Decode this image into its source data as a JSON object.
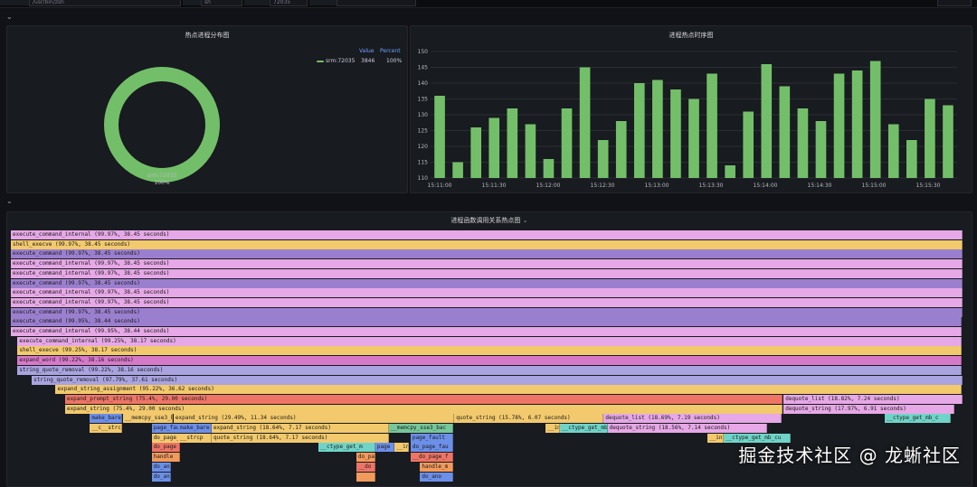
{
  "topbar": {
    "fields": [
      {
        "label": "",
        "value": "/usr/bin/zsh"
      },
      {
        "label": "",
        "value": "sh"
      },
      {
        "label": "",
        "value": "72035"
      },
      {
        "label": "",
        "value": ""
      }
    ]
  },
  "pie_panel": {
    "title": "热点进程分布图",
    "legend_headers": {
      "value": "Value",
      "percent": "Percent"
    },
    "legend_rows": [
      {
        "name": "srm:72035",
        "value": "3846",
        "percent": "100%"
      }
    ],
    "slice_label": "srm:72035",
    "slice_percent": "100%",
    "color": "#73bf69"
  },
  "bar_panel": {
    "title": "进程热点时序图",
    "color": "#73bf69"
  },
  "flame_panel": {
    "title": "进程函数调用关系热点图",
    "chevron": "⌄"
  },
  "chart_data": [
    {
      "type": "pie",
      "labels": [
        "srm:72035"
      ],
      "values": [
        3846
      ],
      "percents": [
        100
      ]
    },
    {
      "type": "bar",
      "x_ticks": [
        "15:11:00",
        "15:11:30",
        "15:12:00",
        "15:12:30",
        "15:13:00",
        "15:13:30",
        "15:14:00",
        "15:14:30",
        "15:15:00",
        "15:15:30"
      ],
      "values": [
        136,
        115,
        126,
        129,
        132,
        127,
        116,
        132,
        145,
        122,
        128,
        140,
        141,
        138,
        135,
        143,
        114,
        131,
        146,
        139,
        132,
        128,
        143,
        144,
        147,
        127,
        122,
        135,
        133
      ],
      "ylim": [
        110,
        150
      ],
      "y_ticks": [
        110,
        115,
        120,
        125,
        130,
        135,
        140,
        145,
        150
      ],
      "grid": true
    }
  ],
  "flame": {
    "rows": [
      [
        {
          "t": "execute_command_internal (99.97%, 38.45 seconds)",
          "s": 0.0,
          "w": 1.0,
          "c": "#e6a8e6"
        }
      ],
      [
        {
          "t": "shell_execve (99.97%, 38.45 seconds)",
          "s": 0.0,
          "w": 1.0,
          "c": "#f2c96d"
        }
      ],
      [
        {
          "t": "execute_command (99.97%, 38.45 seconds)",
          "s": 0.0,
          "w": 1.0,
          "c": "#9b7fcf"
        }
      ],
      [
        {
          "t": "execute_command_internal (99.97%, 38.45 seconds)",
          "s": 0.0,
          "w": 1.0,
          "c": "#e6a8e6"
        }
      ],
      [
        {
          "t": "execute_command_internal (99.97%, 38.45 seconds)",
          "s": 0.0,
          "w": 1.0,
          "c": "#e6a8e6"
        }
      ],
      [
        {
          "t": "execute_command (99.97%, 38.45 seconds)",
          "s": 0.0,
          "w": 1.0,
          "c": "#9b7fcf"
        }
      ],
      [
        {
          "t": "execute_command_internal (99.97%, 38.45 seconds)",
          "s": 0.0,
          "w": 1.0,
          "c": "#e6a8e6"
        }
      ],
      [
        {
          "t": "execute_command_internal (99.97%, 38.45 seconds)",
          "s": 0.0,
          "w": 1.0,
          "c": "#e6a8e6"
        }
      ],
      [
        {
          "t": "execute_command (99.97%, 38.45 seconds)",
          "s": 0.0,
          "w": 1.0,
          "c": "#9b7fcf"
        }
      ],
      [
        {
          "t": "execute_command (99.95%, 38.44 seconds)",
          "s": 0.0,
          "w": 0.9995,
          "c": "#9b7fcf"
        }
      ],
      [
        {
          "t": "execute_command_internal (99.95%, 38.44 seconds)",
          "s": 0.0,
          "w": 0.9995,
          "c": "#e6a8e6"
        }
      ],
      [
        {
          "t": "execute_command_internal (99.25%, 38.17 seconds)",
          "s": 0.007,
          "w": 0.9925,
          "c": "#e6a8e6"
        }
      ],
      [
        {
          "t": "shell_execve (99.25%, 38.17 seconds)",
          "s": 0.007,
          "w": 0.9925,
          "c": "#f2c96d"
        }
      ],
      [
        {
          "t": "expand_word (99.22%, 38.16 seconds)",
          "s": 0.007,
          "w": 0.9922,
          "c": "#d679c9"
        }
      ],
      [
        {
          "t": "string_quote_removal (99.22%, 38.16 seconds)",
          "s": 0.007,
          "w": 0.9922,
          "c": "#a9a3e0"
        }
      ],
      [
        {
          "t": "string_quote_removal (97.79%, 37.61 seconds)",
          "s": 0.022,
          "w": 0.9779,
          "c": "#a9a3e0"
        }
      ],
      [
        {
          "t": "expand_string_assignment (95.22%, 36.62 seconds)",
          "s": 0.047,
          "w": 0.9522,
          "c": "#f2c96d"
        }
      ],
      [
        {
          "t": "expand_prompt_string (75.4%, 29.00 seconds)",
          "s": 0.057,
          "w": 0.754,
          "c": "#ee7566"
        },
        {
          "t": "dequote_list (18.82%, 7.24 seconds)",
          "s": 0.812,
          "w": 0.1882,
          "c": "#e6a8e6"
        }
      ],
      [
        {
          "t": "expand_string (75.4%, 29.00 seconds)",
          "s": 0.057,
          "w": 0.754,
          "c": "#f2c96d"
        },
        {
          "t": "dequote_string (17.97%, 6.91 seconds)",
          "s": 0.812,
          "w": 0.1797,
          "c": "#e6a8e6"
        }
      ],
      [
        {
          "t": "make_bare_",
          "s": 0.083,
          "w": 0.034,
          "c": "#6c8fe8"
        },
        {
          "t": "__memcpy_sse3_b",
          "s": 0.118,
          "w": 0.052,
          "c": "#f2c96d"
        },
        {
          "t": "expand_string (29.49%, 11.34 seconds)",
          "s": 0.171,
          "w": 0.295,
          "c": "#f2c96d"
        },
        {
          "t": "quote_string (15.78%, 6.07 seconds)",
          "s": 0.466,
          "w": 0.157,
          "c": "#f2c96d"
        },
        {
          "t": "dequote_list (18.69%, 7.19 seconds)",
          "s": 0.623,
          "w": 0.187,
          "c": "#e6a8e6"
        },
        {
          "t": "__ctype_get_mb_c",
          "s": 0.918,
          "w": 0.07,
          "c": "#6fd4c7"
        }
      ],
      [
        {
          "t": "__c__strc",
          "s": 0.083,
          "w": 0.034,
          "c": "#f2c96d"
        },
        {
          "t": "page_fau",
          "s": 0.148,
          "w": 0.03,
          "c": "#6c8fe8"
        },
        {
          "t": "make_bare",
          "s": 0.176,
          "w": 0.035,
          "c": "#6c8fe8"
        },
        {
          "t": "expand_string (18.64%, 7.17 seconds)",
          "s": 0.211,
          "w": 0.186,
          "c": "#f2c96d"
        },
        {
          "t": "__memcpy_sse3_bac",
          "s": 0.397,
          "w": 0.068,
          "c": "#77c79b"
        },
        {
          "t": "__in",
          "s": 0.562,
          "w": 0.015,
          "c": "#f2c96d"
        },
        {
          "t": "__ctype_get_mb",
          "s": 0.577,
          "w": 0.05,
          "c": "#6fd4c7"
        },
        {
          "t": "dequote_string (18.56%, 7.14 seconds)",
          "s": 0.627,
          "w": 0.168,
          "c": "#e6a8e6"
        }
      ],
      [
        {
          "t": "do_page_",
          "s": 0.148,
          "w": 0.03,
          "c": "#f2c96d"
        },
        {
          "t": "__strcp",
          "s": 0.176,
          "w": 0.035,
          "c": "#f2c96d"
        },
        {
          "t": "quote_string (18.64%, 7.17 seconds)",
          "s": 0.211,
          "w": 0.186,
          "c": "#f2c96d"
        },
        {
          "t": "page_fault",
          "s": 0.42,
          "w": 0.045,
          "c": "#6c8fe8"
        },
        {
          "t": "__in",
          "s": 0.732,
          "w": 0.017,
          "c": "#f2c96d"
        },
        {
          "t": "__ctype_get_mb_cu",
          "s": 0.749,
          "w": 0.07,
          "c": "#6fd4c7"
        }
      ],
      [
        {
          "t": "do_page",
          "s": 0.148,
          "w": 0.03,
          "c": "#ee7566"
        },
        {
          "t": "__ctype_get_m",
          "s": 0.323,
          "w": 0.06,
          "c": "#6fd4c7"
        },
        {
          "t": "page",
          "s": 0.383,
          "w": 0.02,
          "c": "#6c8fe8"
        },
        {
          "t": "__in",
          "s": 0.403,
          "w": 0.015,
          "c": "#f2c96d"
        },
        {
          "t": "do_page_fau",
          "s": 0.42,
          "w": 0.045,
          "c": "#6c8fe8"
        }
      ],
      [
        {
          "t": "handle",
          "s": 0.148,
          "w": 0.03,
          "c": "#f29a5c"
        },
        {
          "t": "do_pa",
          "s": 0.363,
          "w": 0.02,
          "c": "#f29a5c"
        },
        {
          "t": "__do_page_f",
          "s": 0.42,
          "w": 0.045,
          "c": "#ee7566"
        }
      ],
      [
        {
          "t": "do_an",
          "s": 0.148,
          "w": 0.02,
          "c": "#6c8fe8"
        },
        {
          "t": "__do",
          "s": 0.363,
          "w": 0.02,
          "c": "#ee7566"
        },
        {
          "t": "handle_m",
          "s": 0.43,
          "w": 0.035,
          "c": "#f29a5c"
        }
      ],
      [
        {
          "t": "do_an",
          "s": 0.148,
          "w": 0.02,
          "c": "#6c8fe8"
        },
        {
          "t": "",
          "s": 0.363,
          "w": 0.02,
          "c": "#f29a5c"
        },
        {
          "t": "do_ano",
          "s": 0.43,
          "w": 0.035,
          "c": "#6c8fe8"
        }
      ]
    ]
  },
  "watermark": "掘金技术社区 @ 龙蜥社区"
}
